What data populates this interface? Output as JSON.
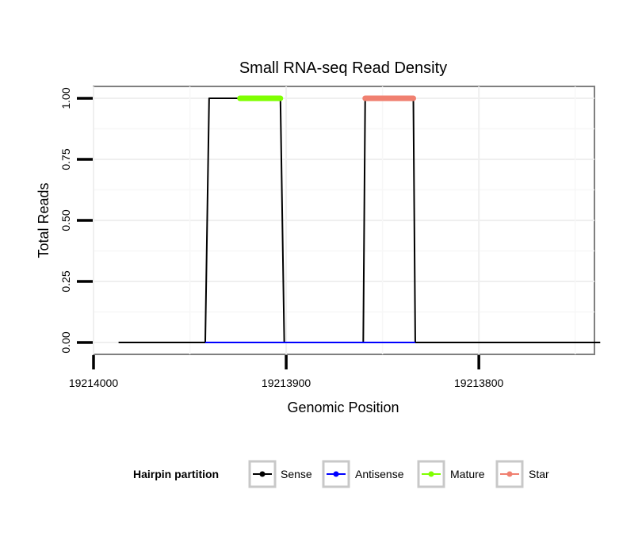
{
  "chart_data": {
    "type": "line",
    "title": "Small RNA-seq Read Density",
    "xlabel": "Genomic Position",
    "ylabel": "Total Reads",
    "xlim": [
      19214000,
      19213740
    ],
    "ylim": [
      0,
      1
    ],
    "x_reversed": true,
    "x_ticks": [
      {
        "value": 19214000,
        "label": "19214000"
      },
      {
        "value": 19213900,
        "label": "19213900"
      },
      {
        "value": 19213800,
        "label": "19213800"
      }
    ],
    "y_ticks": [
      {
        "value": 0,
        "label": "0.00"
      },
      {
        "value": 0.25,
        "label": "0.25"
      },
      {
        "value": 0.5,
        "label": "0.50"
      },
      {
        "value": 0.75,
        "label": "0.75"
      },
      {
        "value": 1,
        "label": "1.00"
      }
    ],
    "grid": true,
    "series": [
      {
        "name": "Sense",
        "color": "#000000",
        "x": [
          19213987,
          19213942,
          19213940,
          19213903,
          19213901,
          19213860,
          19213859,
          19213834,
          19213833,
          19213737
        ],
        "y": [
          0,
          0,
          1,
          1,
          0,
          0,
          1,
          1,
          0,
          0
        ]
      },
      {
        "name": "Antisense",
        "color": "#0000ff",
        "x": [
          19213942,
          19213901,
          19213860,
          19213833
        ],
        "y": [
          0,
          0,
          0,
          0
        ]
      },
      {
        "name": "Mature",
        "color": "#7fff00",
        "x": [
          19213924,
          19213903
        ],
        "y": [
          1,
          1
        ]
      },
      {
        "name": "Star",
        "color": "#f08070",
        "x": [
          19213859,
          19213834
        ],
        "y": [
          1,
          1
        ]
      }
    ],
    "legend": {
      "title": "Hairpin partition",
      "position": "bottom",
      "entries": [
        "Sense",
        "Antisense",
        "Mature",
        "Star"
      ]
    }
  }
}
